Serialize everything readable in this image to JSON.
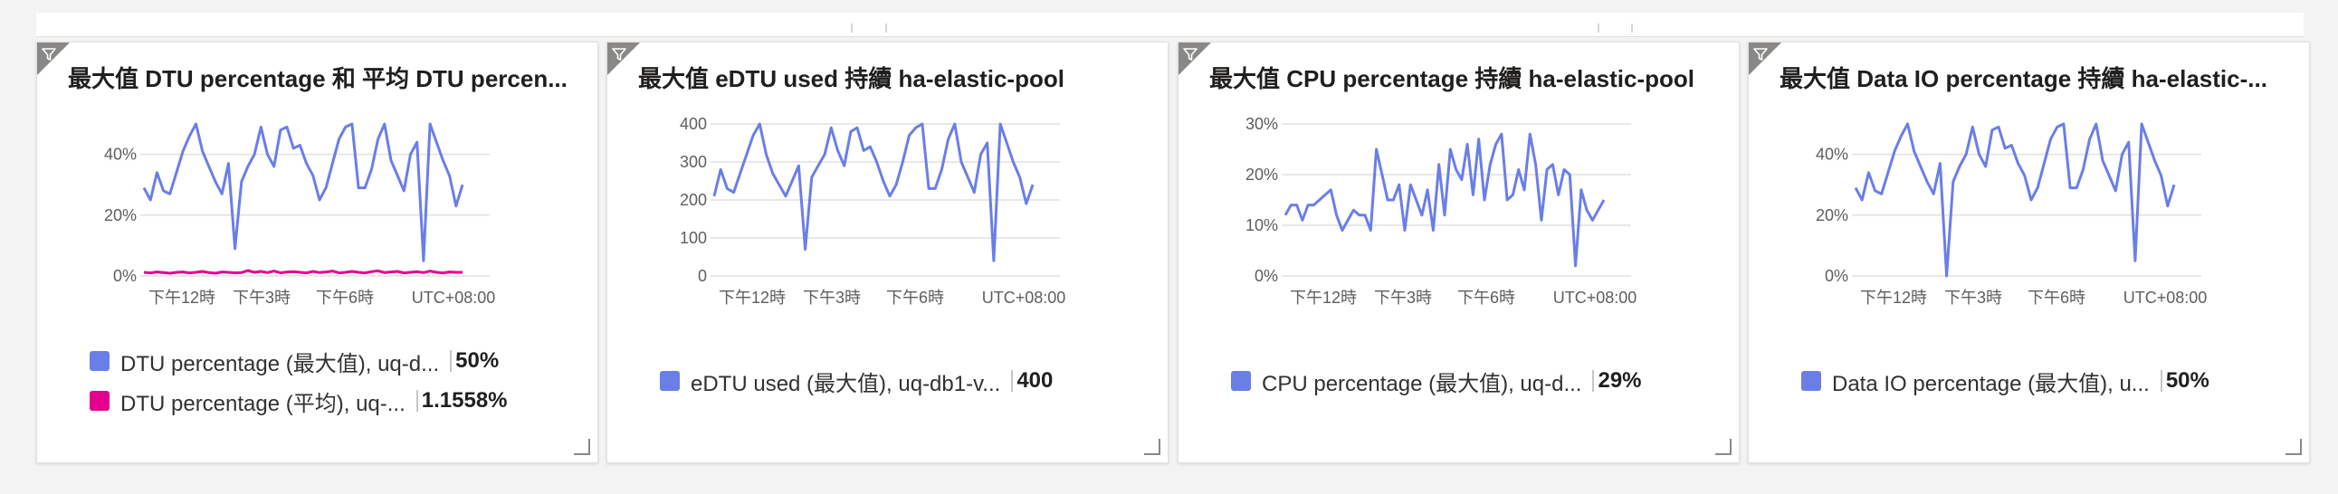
{
  "colors": {
    "series_blue": "#6a7ee8",
    "series_pink": "#e3008c",
    "grid": "#e1e1e1",
    "filter": "#8a8886"
  },
  "tiles": [
    {
      "title": "最大值 DTU percentage 和 平均 DTU percen...",
      "legend": [
        {
          "label": "DTU percentage (最大值), uq-d...",
          "value": "50%",
          "color": "#6a7ee8"
        },
        {
          "label": "DTU percentage (平均), uq-...",
          "value": "1.1558%",
          "color": "#e3008c"
        }
      ]
    },
    {
      "title": "最大值 eDTU used 持續 ha-elastic-pool",
      "legend": [
        {
          "label": "eDTU used (最大值), uq-db1-v...",
          "value": "400",
          "color": "#6a7ee8"
        }
      ]
    },
    {
      "title": "最大值 CPU percentage 持續 ha-elastic-pool",
      "legend": [
        {
          "label": "CPU percentage (最大值), uq-d...",
          "value": "29%",
          "color": "#6a7ee8"
        }
      ]
    },
    {
      "title": "最大值 Data IO percentage 持續 ha-elastic-...",
      "legend": [
        {
          "label": "Data IO percentage (最大值), u...",
          "value": "50%",
          "color": "#6a7ee8"
        }
      ]
    }
  ],
  "chart_data": [
    {
      "type": "line",
      "title": "最大值 DTU percentage 和 平均 DTU percen...",
      "y_ticks": [
        "0%",
        "20%",
        "40%"
      ],
      "ylim": [
        0,
        50
      ],
      "x_ticks": [
        "下午12時",
        "下午3時",
        "下午6時"
      ],
      "timezone": "UTC+08:00",
      "series": [
        {
          "name": "DTU percentage (最大值), uq-d...",
          "color": "#6a7ee8",
          "values": [
            29,
            25,
            34,
            28,
            27,
            34,
            41,
            46,
            50,
            41,
            36,
            31,
            27,
            37,
            9,
            31,
            36,
            40,
            49,
            40,
            36,
            48,
            49,
            42,
            43,
            37,
            33,
            25,
            29,
            37,
            45,
            49,
            50,
            29,
            29,
            35,
            45,
            50,
            38,
            33,
            28,
            40,
            44,
            5,
            50,
            44,
            38,
            33,
            23,
            30
          ]
        },
        {
          "name": "DTU percentage (平均), uq-...",
          "color": "#e3008c",
          "values": [
            1.2,
            1.0,
            1.3,
            1.1,
            0.9,
            1.2,
            1.3,
            1.0,
            1.2,
            1.5,
            1.1,
            0.9,
            1.3,
            1.2,
            1.0,
            1.1,
            1.8,
            1.2,
            1.5,
            1.1,
            1.6,
            1.0,
            1.3,
            1.4,
            1.2,
            1.0,
            1.5,
            1.1,
            1.3,
            1.6,
            1.0,
            1.2,
            1.5,
            1.2,
            1.0,
            1.4,
            1.7,
            1.1,
            1.3,
            1.5,
            1.0,
            1.2,
            1.4,
            1.1,
            1.6,
            1.2,
            1.0,
            1.3,
            1.2,
            1.2
          ]
        }
      ]
    },
    {
      "type": "line",
      "title": "最大值 eDTU used 持續 ha-elastic-pool",
      "y_ticks": [
        "0",
        "100",
        "200",
        "300",
        "400"
      ],
      "ylim": [
        0,
        400
      ],
      "x_ticks": [
        "下午12時",
        "下午3時",
        "下午6時"
      ],
      "timezone": "UTC+08:00",
      "series": [
        {
          "name": "eDTU used (最大值), uq-db1-v...",
          "color": "#6a7ee8",
          "values": [
            210,
            280,
            230,
            220,
            270,
            320,
            370,
            400,
            320,
            270,
            240,
            210,
            250,
            290,
            70,
            260,
            290,
            320,
            390,
            330,
            290,
            380,
            390,
            330,
            340,
            300,
            250,
            210,
            240,
            300,
            370,
            390,
            400,
            230,
            230,
            280,
            360,
            400,
            300,
            260,
            220,
            320,
            350,
            40,
            400,
            350,
            300,
            260,
            190,
            240
          ]
        }
      ]
    },
    {
      "type": "line",
      "title": "最大值 CPU percentage 持續 ha-elastic-pool",
      "y_ticks": [
        "0%",
        "10%",
        "20%",
        "30%"
      ],
      "ylim": [
        0,
        30
      ],
      "x_ticks": [
        "下午12時",
        "下午3時",
        "下午6時"
      ],
      "timezone": "UTC+08:00",
      "series": [
        {
          "name": "CPU percentage (最大值), uq-d...",
          "color": "#6a7ee8",
          "values": [
            12,
            14,
            14,
            11,
            14,
            14,
            15,
            16,
            17,
            12,
            9,
            11,
            13,
            12,
            12,
            9,
            25,
            20,
            15,
            15,
            18,
            9,
            18,
            15,
            12,
            17,
            9,
            22,
            12,
            25,
            21,
            19,
            26,
            16,
            27,
            15,
            22,
            26,
            28,
            15,
            16,
            21,
            17,
            28,
            22,
            11,
            21,
            22,
            16,
            21,
            20,
            2,
            17,
            13,
            11,
            13,
            15
          ]
        }
      ]
    },
    {
      "type": "line",
      "title": "最大值 Data IO percentage 持續 ha-elastic-...",
      "y_ticks": [
        "0%",
        "20%",
        "40%"
      ],
      "ylim": [
        0,
        50
      ],
      "x_ticks": [
        "下午12時",
        "下午3時",
        "下午6時"
      ],
      "timezone": "UTC+08:00",
      "series": [
        {
          "name": "Data IO percentage (最大值), u...",
          "color": "#6a7ee8",
          "values": [
            29,
            25,
            34,
            28,
            27,
            34,
            41,
            46,
            50,
            41,
            36,
            31,
            27,
            37,
            0,
            31,
            36,
            40,
            49,
            40,
            36,
            48,
            49,
            42,
            43,
            37,
            33,
            25,
            29,
            37,
            45,
            49,
            50,
            29,
            29,
            35,
            45,
            50,
            38,
            33,
            28,
            40,
            44,
            5,
            50,
            44,
            38,
            33,
            23,
            30
          ]
        }
      ]
    }
  ]
}
